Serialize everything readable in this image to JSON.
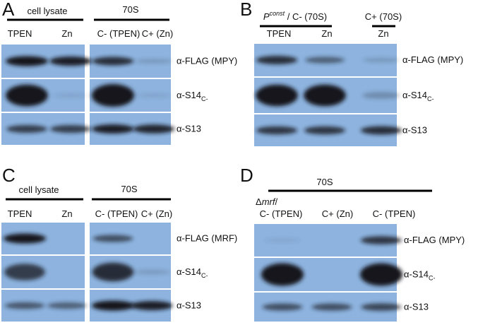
{
  "panels": [
    {
      "letter": "A",
      "groups": [
        {
          "title": "cell lysate",
          "lanes": [
            "TPEN",
            "Zn"
          ]
        },
        {
          "title": "70S",
          "lanes": [
            "C- (TPEN)",
            "C+ (Zn)"
          ]
        }
      ],
      "rows": [
        {
          "label": "α-FLAG (MPY)"
        },
        {
          "label": "α-S14",
          "sub": "C-"
        },
        {
          "label": "α-S13"
        }
      ]
    },
    {
      "letter": "B",
      "groups": [
        {
          "title": {
            "italic": "P",
            "sup": "const",
            "rest": " / C- (70S)"
          },
          "lanes": [
            "TPEN",
            "Zn"
          ]
        },
        {
          "title": "C+ (70S)",
          "lanes": [
            "Zn"
          ]
        }
      ],
      "rows": [
        {
          "label": "α-FLAG (MPY)"
        },
        {
          "label": "α-S14",
          "sub": "C-"
        },
        {
          "label": "α-S13"
        }
      ]
    },
    {
      "letter": "C",
      "groups": [
        {
          "title": "cell lysate",
          "lanes": [
            "TPEN",
            "Zn"
          ]
        },
        {
          "title": "70S",
          "lanes": [
            "C- (TPEN)",
            "C+ (Zn)"
          ]
        }
      ],
      "rows": [
        {
          "label": "α-FLAG (MRF)"
        },
        {
          "label": "α-S14",
          "sub": "C-"
        },
        {
          "label": "α-S13"
        }
      ]
    },
    {
      "letter": "D",
      "title": "70S",
      "groups": [
        {
          "title": {
            "pre": "Δ",
            "italic": "mrf",
            "post": "/"
          },
          "lanes": [
            "C- (TPEN)"
          ]
        },
        {
          "lanes": [
            "C+ (Zn)",
            "C- (TPEN)"
          ]
        }
      ],
      "rows": [
        {
          "label": "α-FLAG (MPY)"
        },
        {
          "label": "α-S14",
          "sub": "C-"
        },
        {
          "label": "α-S13"
        }
      ]
    }
  ]
}
